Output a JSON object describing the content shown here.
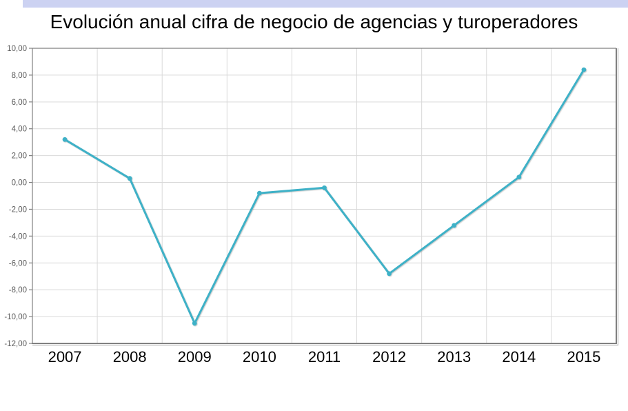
{
  "page": {
    "background": "#ffffff",
    "top_bar_color": "#ccd2f2"
  },
  "chart_data": {
    "type": "line",
    "title": "Evolución anual cifra de negocio de agencias y turoperadores",
    "categories": [
      "2007",
      "2008",
      "2009",
      "2010",
      "2011",
      "2012",
      "2013",
      "2014",
      "2015"
    ],
    "values": [
      3.2,
      0.3,
      -10.5,
      -0.8,
      -0.4,
      -6.8,
      -3.2,
      0.4,
      8.4
    ],
    "xlabel": "",
    "ylabel": "",
    "ylim": [
      -12,
      10
    ],
    "ytick_step": 2,
    "ytick_labels": [
      "10,00",
      "8,00",
      "6,00",
      "4,00",
      "2,00",
      "0,00",
      "-2,00",
      "-4,00",
      "-6,00",
      "-8,00",
      "-10,00",
      "-12,00"
    ],
    "grid": true,
    "legend": false,
    "marker": "circle",
    "style": {
      "line_color": "#3eb1c7",
      "grid_color": "#d9d9d9",
      "axis_color": "#808080",
      "axis_shadow_color": "#c9c9c9",
      "ytick_color": "#595959",
      "xtick_color": "#000000"
    }
  }
}
